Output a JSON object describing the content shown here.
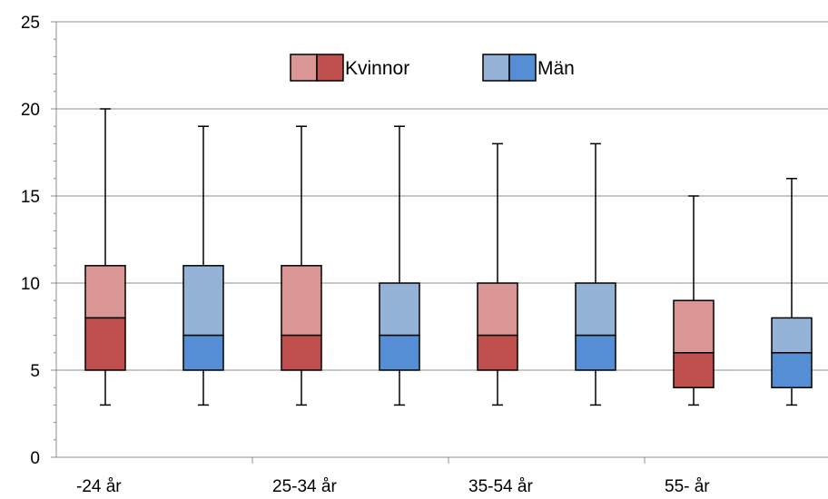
{
  "chart_data": {
    "type": "boxplot",
    "title": "",
    "xlabel": "",
    "ylabel": "",
    "ylim": [
      0,
      25
    ],
    "yticks": [
      0,
      5,
      10,
      15,
      20,
      25
    ],
    "grid": "horizontal",
    "legend_position": "top-center",
    "categories": [
      "-24 år",
      "25-34 år",
      "35-54 år",
      "55- år"
    ],
    "series": [
      {
        "name": "Kvinnor",
        "color_upper": "#da9694",
        "color_lower": "#c0504d",
        "boxes": [
          {
            "category": "-24 år",
            "min": 3,
            "q1": 5,
            "median": 8,
            "q3": 11,
            "max": 20
          },
          {
            "category": "25-34 år",
            "min": 3,
            "q1": 5,
            "median": 7,
            "q3": 11,
            "max": 19
          },
          {
            "category": "35-54 år",
            "min": 3,
            "q1": 5,
            "median": 7,
            "q3": 10,
            "max": 18
          },
          {
            "category": "55- år",
            "min": 3,
            "q1": 4,
            "median": 6,
            "q3": 9,
            "max": 15
          }
        ]
      },
      {
        "name": "Män",
        "color_upper": "#95b3d7",
        "color_lower": "#558ed5",
        "boxes": [
          {
            "category": "-24 år",
            "min": 3,
            "q1": 5,
            "median": 7,
            "q3": 11,
            "max": 19
          },
          {
            "category": "25-34 år",
            "min": 3,
            "q1": 5,
            "median": 7,
            "q3": 10,
            "max": 19
          },
          {
            "category": "35-54 år",
            "min": 3,
            "q1": 5,
            "median": 7,
            "q3": 10,
            "max": 18
          },
          {
            "category": "55- år",
            "min": 3,
            "q1": 4,
            "median": 6,
            "q3": 8,
            "max": 16
          }
        ]
      }
    ]
  }
}
